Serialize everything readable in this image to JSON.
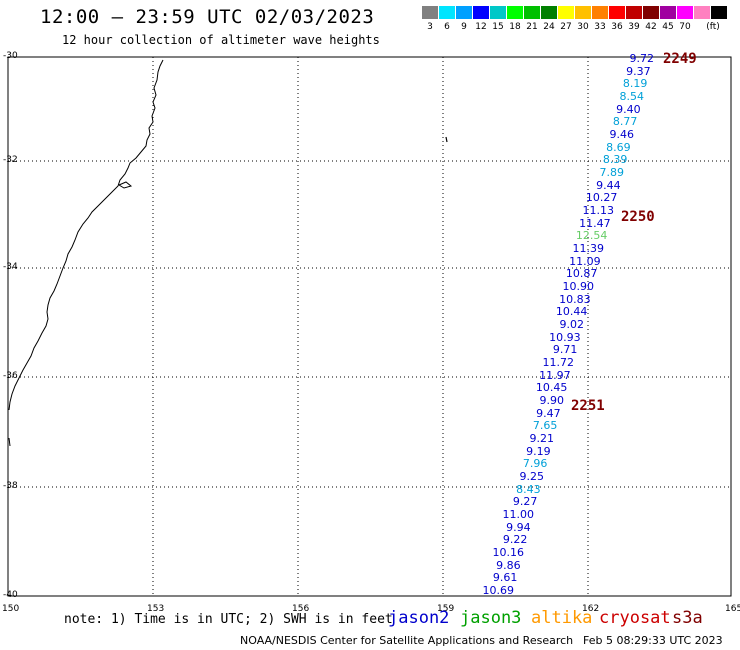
{
  "header": {
    "title": "12:00 — 23:59 UTC 02/03/2023",
    "subtitle": "12 hour collection of altimeter wave heights"
  },
  "color_scale": {
    "unit": "(ft)",
    "swatches": [
      "#808080",
      "#00e5ff",
      "#00a0ff",
      "#0000ff",
      "#00c8c8",
      "#00ff00",
      "#00c000",
      "#008000",
      "#ffff00",
      "#ffc000",
      "#ff8000",
      "#ff0000",
      "#c00000",
      "#800000",
      "#a000a0",
      "#ff00ff",
      "#ff80c0",
      "#000000"
    ],
    "labels": [
      "3",
      "6",
      "9",
      "12",
      "15",
      "18",
      "21",
      "24",
      "27",
      "30",
      "33",
      "36",
      "39",
      "42",
      "45",
      "70"
    ]
  },
  "map": {
    "lat_labels": [
      "-30",
      "-32",
      "-34",
      "-36",
      "-38",
      "-40"
    ],
    "lon_labels": [
      "150",
      "153",
      "156",
      "159",
      "162",
      "165"
    ]
  },
  "track": {
    "times": [
      "2249",
      "2250",
      "2251"
    ],
    "points": [
      {
        "v": "9.72",
        "c": "#0000cc"
      },
      {
        "v": "9.37",
        "c": "#0000cc"
      },
      {
        "v": "8.19",
        "c": "#00a0d8"
      },
      {
        "v": "8.54",
        "c": "#00a0d8"
      },
      {
        "v": "9.40",
        "c": "#0000cc"
      },
      {
        "v": "8.77",
        "c": "#00a0d8"
      },
      {
        "v": "9.46",
        "c": "#0000cc"
      },
      {
        "v": "8.69",
        "c": "#00a0d8"
      },
      {
        "v": "8.39",
        "c": "#00a0d8"
      },
      {
        "v": "7.89",
        "c": "#00a0d8"
      },
      {
        "v": "9.44",
        "c": "#0000cc"
      },
      {
        "v": "10.27",
        "c": "#0000cc"
      },
      {
        "v": "11.13",
        "c": "#0000cc"
      },
      {
        "v": "11.47",
        "c": "#0000cc"
      },
      {
        "v": "12.54",
        "c": "#66cc66"
      },
      {
        "v": "11.39",
        "c": "#0000cc"
      },
      {
        "v": "11.09",
        "c": "#0000cc"
      },
      {
        "v": "10.87",
        "c": "#0000cc"
      },
      {
        "v": "10.90",
        "c": "#0000cc"
      },
      {
        "v": "10.83",
        "c": "#0000cc"
      },
      {
        "v": "10.44",
        "c": "#0000cc"
      },
      {
        "v": "9.02",
        "c": "#0000cc"
      },
      {
        "v": "10.93",
        "c": "#0000cc"
      },
      {
        "v": "9.71",
        "c": "#0000cc"
      },
      {
        "v": "11.72",
        "c": "#0000cc"
      },
      {
        "v": "11.97",
        "c": "#0000cc"
      },
      {
        "v": "10.45",
        "c": "#0000cc"
      },
      {
        "v": "9.90",
        "c": "#0000cc"
      },
      {
        "v": "9.47",
        "c": "#0000cc"
      },
      {
        "v": "7.65",
        "c": "#00a0d8"
      },
      {
        "v": "9.21",
        "c": "#0000cc"
      },
      {
        "v": "9.19",
        "c": "#0000cc"
      },
      {
        "v": "7.96",
        "c": "#00a0d8"
      },
      {
        "v": "9.25",
        "c": "#0000cc"
      },
      {
        "v": "8.43",
        "c": "#00a0d8"
      },
      {
        "v": "9.27",
        "c": "#0000cc"
      },
      {
        "v": "11.00",
        "c": "#0000cc"
      },
      {
        "v": "9.94",
        "c": "#0000cc"
      },
      {
        "v": "9.22",
        "c": "#0000cc"
      },
      {
        "v": "10.16",
        "c": "#0000cc"
      },
      {
        "v": "9.86",
        "c": "#0000cc"
      },
      {
        "v": "9.61",
        "c": "#0000cc"
      },
      {
        "v": "10.69",
        "c": "#0000cc"
      }
    ]
  },
  "footer": {
    "note": "note: 1) Time is in UTC; 2) SWH is in feet",
    "legend": [
      {
        "name": "jason2",
        "color": "#0000cc"
      },
      {
        "name": "jason3",
        "color": "#00a000"
      },
      {
        "name": "altika",
        "color": "#ff9900"
      },
      {
        "name": "cryosat",
        "color": "#cc0000"
      },
      {
        "name": "s3a",
        "color": "#800000"
      }
    ],
    "credit": "NOAA/NESDIS Center for Satellite Applications and Research",
    "generated": "Feb  5 08:29:33 UTC 2023"
  }
}
